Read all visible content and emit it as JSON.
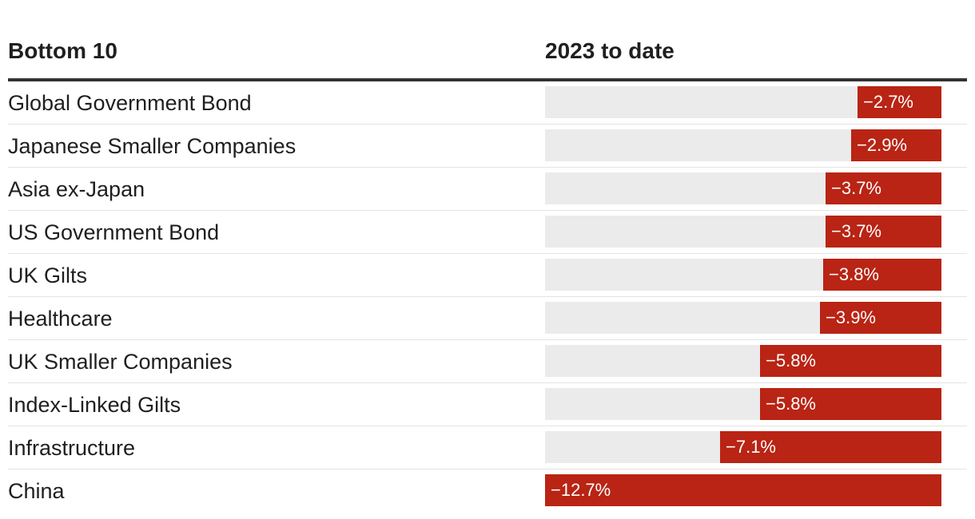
{
  "chart_data": {
    "type": "bar",
    "orientation": "horizontal",
    "column_headers": [
      "Bottom 10",
      "2023 to date"
    ],
    "categories": [
      "Global Government Bond",
      "Japanese Smaller Companies",
      "Asia ex-Japan",
      "US Government Bond",
      "UK Gilts",
      "Healthcare",
      "UK Smaller Companies",
      "Index-Linked Gilts",
      "Infrastructure",
      "China"
    ],
    "values": [
      -2.7,
      -2.9,
      -3.7,
      -3.7,
      -3.8,
      -3.9,
      -5.8,
      -5.8,
      -7.1,
      -12.7
    ],
    "value_labels": [
      "−2.7%",
      "−2.9%",
      "−3.7%",
      "−3.7%",
      "−3.8%",
      "−3.9%",
      "−5.8%",
      "−5.8%",
      "−7.1%",
      "−12.7%"
    ],
    "xlim": [
      -12.7,
      0
    ],
    "bar_color": "#b92414",
    "track_color": "#ebebeb"
  }
}
